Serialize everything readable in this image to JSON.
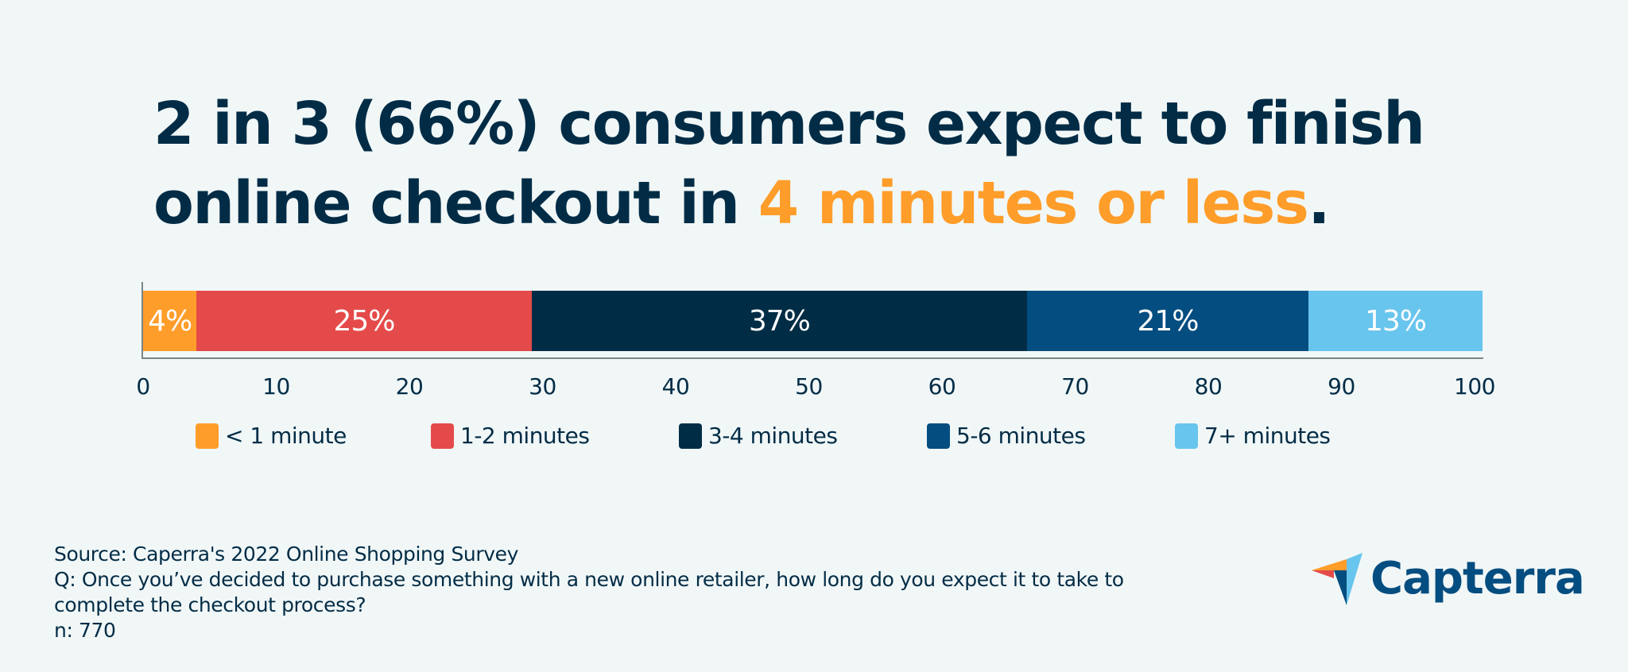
{
  "headline": {
    "part1": "2 in 3 (66%) consumers expect to finish online checkout in ",
    "highlight": "4 minutes or less",
    "part2": ".",
    "highlight_color": "#ff9d2a"
  },
  "chart_data": {
    "type": "bar",
    "orientation": "horizontal-stacked",
    "title": "2 in 3 (66%) consumers expect to finish online checkout in 4 minutes or less.",
    "xlabel": "",
    "ylabel": "",
    "xlim": [
      0,
      100
    ],
    "x_ticks": [
      0,
      10,
      20,
      30,
      40,
      50,
      60,
      70,
      80,
      90,
      100
    ],
    "grid": false,
    "legend_position": "bottom",
    "categories": [
      "< 1 minute",
      "1-2 minutes",
      "3-4 minutes",
      "5-6 minutes",
      "7+ minutes"
    ],
    "values": [
      4,
      25,
      37,
      21,
      13
    ],
    "series": [
      {
        "name": "< 1 minute",
        "values": [
          4
        ],
        "label": "4%",
        "color": "#ff9d2a"
      },
      {
        "name": "1-2 minutes",
        "values": [
          25
        ],
        "label": "25%",
        "color": "#e54a4a"
      },
      {
        "name": "3-4 minutes",
        "values": [
          37
        ],
        "label": "37%",
        "color": "#002d45"
      },
      {
        "name": "5-6 minutes",
        "values": [
          21
        ],
        "label": "21%",
        "color": "#044d80"
      },
      {
        "name": "7+ minutes",
        "values": [
          13
        ],
        "label": "13%",
        "color": "#68c5ed"
      }
    ]
  },
  "ticks": [
    "0",
    "10",
    "20",
    "30",
    "40",
    "50",
    "60",
    "70",
    "80",
    "90",
    "100"
  ],
  "footer": {
    "source": "Source: Caperra's 2022 Online Shopping Survey",
    "question_line1": "Q: Once you’ve decided to purchase something with a new online retailer, how long do you expect it to take to",
    "question_line2": "complete the checkout process?",
    "sample": "n: 770"
  },
  "logo": {
    "name": "Capterra",
    "colors": {
      "orange": "#ff9d2a",
      "red": "#e54a4a",
      "navy": "#044d80",
      "sky": "#68c5ed"
    }
  }
}
